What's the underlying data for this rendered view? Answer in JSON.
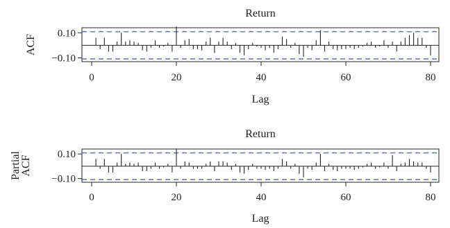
{
  "chart_data": [
    {
      "type": "bar",
      "title": "Return",
      "xlabel": "Lag",
      "ylabel": "ACF",
      "xlim": [
        0,
        80
      ],
      "ylim": [
        -0.13,
        0.14
      ],
      "xticks": [
        "0",
        "20",
        "40",
        "60",
        "80"
      ],
      "yticks": [
        "0.10",
        "−0.10"
      ],
      "ytick_values": [
        0.1,
        -0.1
      ],
      "confidence_band": 0.108,
      "legend": "none",
      "grid": false,
      "lags": [
        1,
        2,
        3,
        4,
        5,
        6,
        7,
        8,
        9,
        10,
        11,
        12,
        13,
        14,
        15,
        16,
        17,
        18,
        19,
        20,
        21,
        22,
        23,
        24,
        25,
        26,
        27,
        28,
        29,
        30,
        31,
        32,
        33,
        34,
        35,
        36,
        37,
        38,
        39,
        40,
        41,
        42,
        43,
        44,
        45,
        46,
        47,
        48,
        49,
        50,
        51,
        52,
        53,
        54,
        55,
        56,
        57,
        58,
        59,
        60,
        61,
        62,
        63,
        64,
        65,
        66,
        67,
        68,
        69,
        70,
        71,
        72,
        73,
        74,
        75,
        76,
        77,
        78,
        79,
        80
      ],
      "values": [
        0.06,
        -0.03,
        0.06,
        -0.05,
        -0.05,
        0.03,
        0.1,
        0.03,
        0.04,
        0.03,
        0.02,
        -0.04,
        -0.05,
        -0.02,
        0.04,
        -0.02,
        -0.01,
        0.02,
        -0.05,
        0.15,
        -0.02,
        0.04,
        0.05,
        -0.03,
        -0.03,
        -0.04,
        0.03,
        0.06,
        -0.06,
        0.03,
        0.06,
        0.03,
        -0.03,
        0.02,
        -0.06,
        -0.08,
        -0.03,
        0.02,
        -0.01,
        -0.02,
        -0.04,
        -0.02,
        -0.06,
        -0.03,
        0.07,
        0.05,
        -0.02,
        0.02,
        -0.07,
        -0.09,
        -0.02,
        -0.04,
        0.04,
        0.12,
        -0.05,
        0.03,
        -0.03,
        -0.04,
        -0.03,
        -0.03,
        -0.02,
        -0.03,
        -0.02,
        -0.01,
        0.02,
        0.03,
        -0.02,
        -0.01,
        0.04,
        -0.02,
        0.03,
        -0.05,
        0.03,
        0.06,
        0.08,
        0.1,
        0.06,
        0.06,
        -0.02,
        -0.08
      ]
    },
    {
      "type": "bar",
      "title": "Return",
      "xlabel": "Lag",
      "ylabel": [
        "Partial",
        "ACF"
      ],
      "xlim": [
        0,
        80
      ],
      "ylim": [
        -0.13,
        0.14
      ],
      "xticks": [
        "0",
        "20",
        "40",
        "60",
        "80"
      ],
      "yticks": [
        "0.10",
        "−0.10"
      ],
      "ytick_values": [
        0.1,
        -0.1
      ],
      "confidence_band": 0.108,
      "legend": "none",
      "grid": false,
      "lags": [
        1,
        2,
        3,
        4,
        5,
        6,
        7,
        8,
        9,
        10,
        11,
        12,
        13,
        14,
        15,
        16,
        17,
        18,
        19,
        20,
        21,
        22,
        23,
        24,
        25,
        26,
        27,
        28,
        29,
        30,
        31,
        32,
        33,
        34,
        35,
        36,
        37,
        38,
        39,
        40,
        41,
        42,
        43,
        44,
        45,
        46,
        47,
        48,
        49,
        50,
        51,
        52,
        53,
        54,
        55,
        56,
        57,
        58,
        59,
        60,
        61,
        62,
        63,
        64,
        65,
        66,
        67,
        68,
        69,
        70,
        71,
        72,
        73,
        74,
        75,
        76,
        77,
        78,
        79,
        80
      ],
      "values": [
        0.06,
        -0.02,
        0.06,
        -0.05,
        -0.05,
        0.03,
        0.1,
        0.02,
        0.03,
        0.02,
        0.03,
        -0.04,
        -0.04,
        -0.02,
        0.03,
        -0.02,
        -0.01,
        0.02,
        -0.05,
        0.14,
        -0.02,
        0.04,
        0.03,
        -0.02,
        -0.02,
        -0.02,
        0.02,
        0.04,
        -0.04,
        0.04,
        0.04,
        0.03,
        -0.03,
        0.02,
        -0.05,
        -0.06,
        -0.03,
        0.02,
        -0.02,
        -0.02,
        -0.03,
        -0.02,
        -0.04,
        -0.02,
        0.06,
        0.04,
        -0.02,
        0.02,
        -0.06,
        -0.09,
        -0.02,
        -0.03,
        0.03,
        0.1,
        -0.04,
        0.02,
        -0.03,
        -0.04,
        -0.02,
        -0.02,
        -0.02,
        -0.03,
        -0.02,
        -0.01,
        0.02,
        0.03,
        -0.02,
        -0.01,
        0.03,
        -0.02,
        0.09,
        -0.04,
        0.02,
        0.03,
        0.06,
        0.04,
        0.03,
        0.03,
        -0.02,
        -0.05
      ]
    }
  ]
}
